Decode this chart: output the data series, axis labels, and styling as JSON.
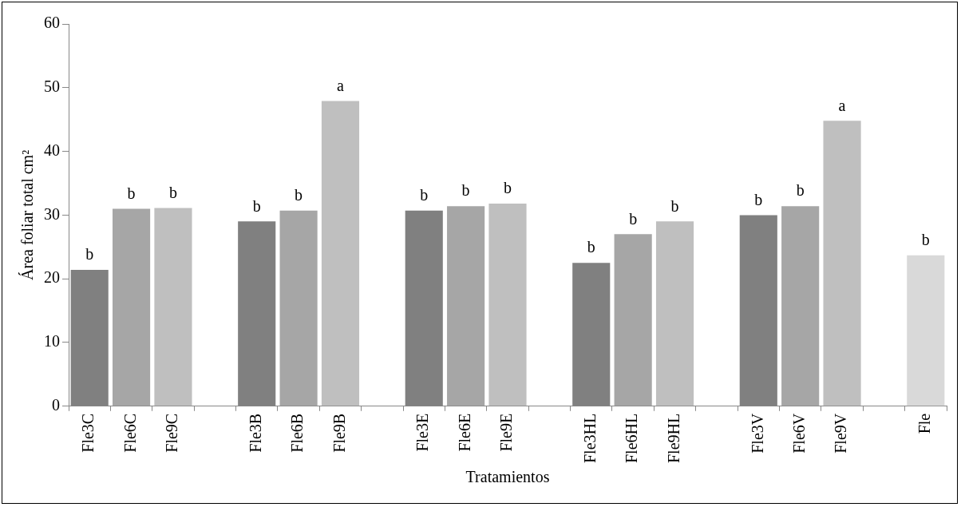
{
  "chart_data": {
    "type": "bar",
    "xlabel": "Tratamientos",
    "ylabel": "Área foliar total cm²",
    "categories": [
      "Fle3C",
      "Fle6C",
      "Fle9C",
      null,
      "Fle3B",
      "Fle6B",
      "Fle9B",
      null,
      "Fle3E",
      "Fle6E",
      "Fle9E",
      null,
      "Fle3HL",
      "Fle6HL",
      "Fle9HL",
      null,
      "Fle3V",
      "Fle6V",
      "Fle9V",
      null,
      "Fle"
    ],
    "values": [
      21.4,
      31.0,
      31.1,
      null,
      29.0,
      30.7,
      47.9,
      null,
      30.7,
      31.4,
      31.8,
      null,
      22.5,
      27.0,
      29.0,
      null,
      30.0,
      31.4,
      44.8,
      null,
      23.7
    ],
    "colors": [
      "#808080",
      "#a6a6a6",
      "#bfbfbf",
      null,
      "#808080",
      "#a6a6a6",
      "#bfbfbf",
      null,
      "#808080",
      "#a6a6a6",
      "#bfbfbf",
      null,
      "#808080",
      "#a6a6a6",
      "#bfbfbf",
      null,
      "#808080",
      "#a6a6a6",
      "#bfbfbf",
      null,
      "#d9d9d9"
    ],
    "value_labels": [
      "b",
      "b",
      "b",
      null,
      "b",
      "b",
      "a",
      null,
      "b",
      "b",
      "b",
      null,
      "b",
      "b",
      "b",
      null,
      "b",
      "b",
      "a",
      null,
      "b"
    ],
    "ylim": [
      0,
      60
    ],
    "yticks": [
      0,
      10,
      20,
      30,
      40,
      50,
      60
    ],
    "grid": false,
    "legend": false
  }
}
